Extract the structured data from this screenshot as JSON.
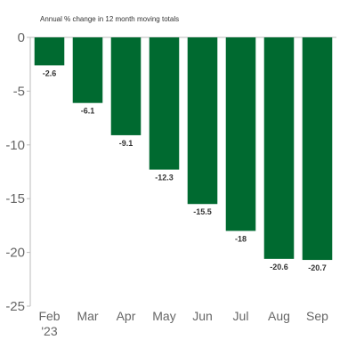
{
  "chart_data": {
    "type": "bar",
    "subtitle": "Annual % change in 12 month moving totals",
    "categories": [
      "Feb\n'23",
      "Mar",
      "Apr",
      "May",
      "Jun",
      "Jul",
      "Aug",
      "Sep"
    ],
    "values": [
      -2.6,
      -6.1,
      -9.1,
      -12.3,
      -15.5,
      -18,
      -20.6,
      -20.7
    ],
    "value_labels": [
      "-2.6",
      "-6.1",
      "-9.1",
      "-12.3",
      "-15.5",
      "-18",
      "-20.6",
      "-20.7"
    ],
    "y_ticks": [
      0,
      -5,
      -10,
      -15,
      -20,
      -25
    ],
    "ylim": [
      -25,
      0
    ],
    "grid": false,
    "legend": "none",
    "bar_color": "#006a30",
    "axis_color": "#bbbbbb"
  }
}
